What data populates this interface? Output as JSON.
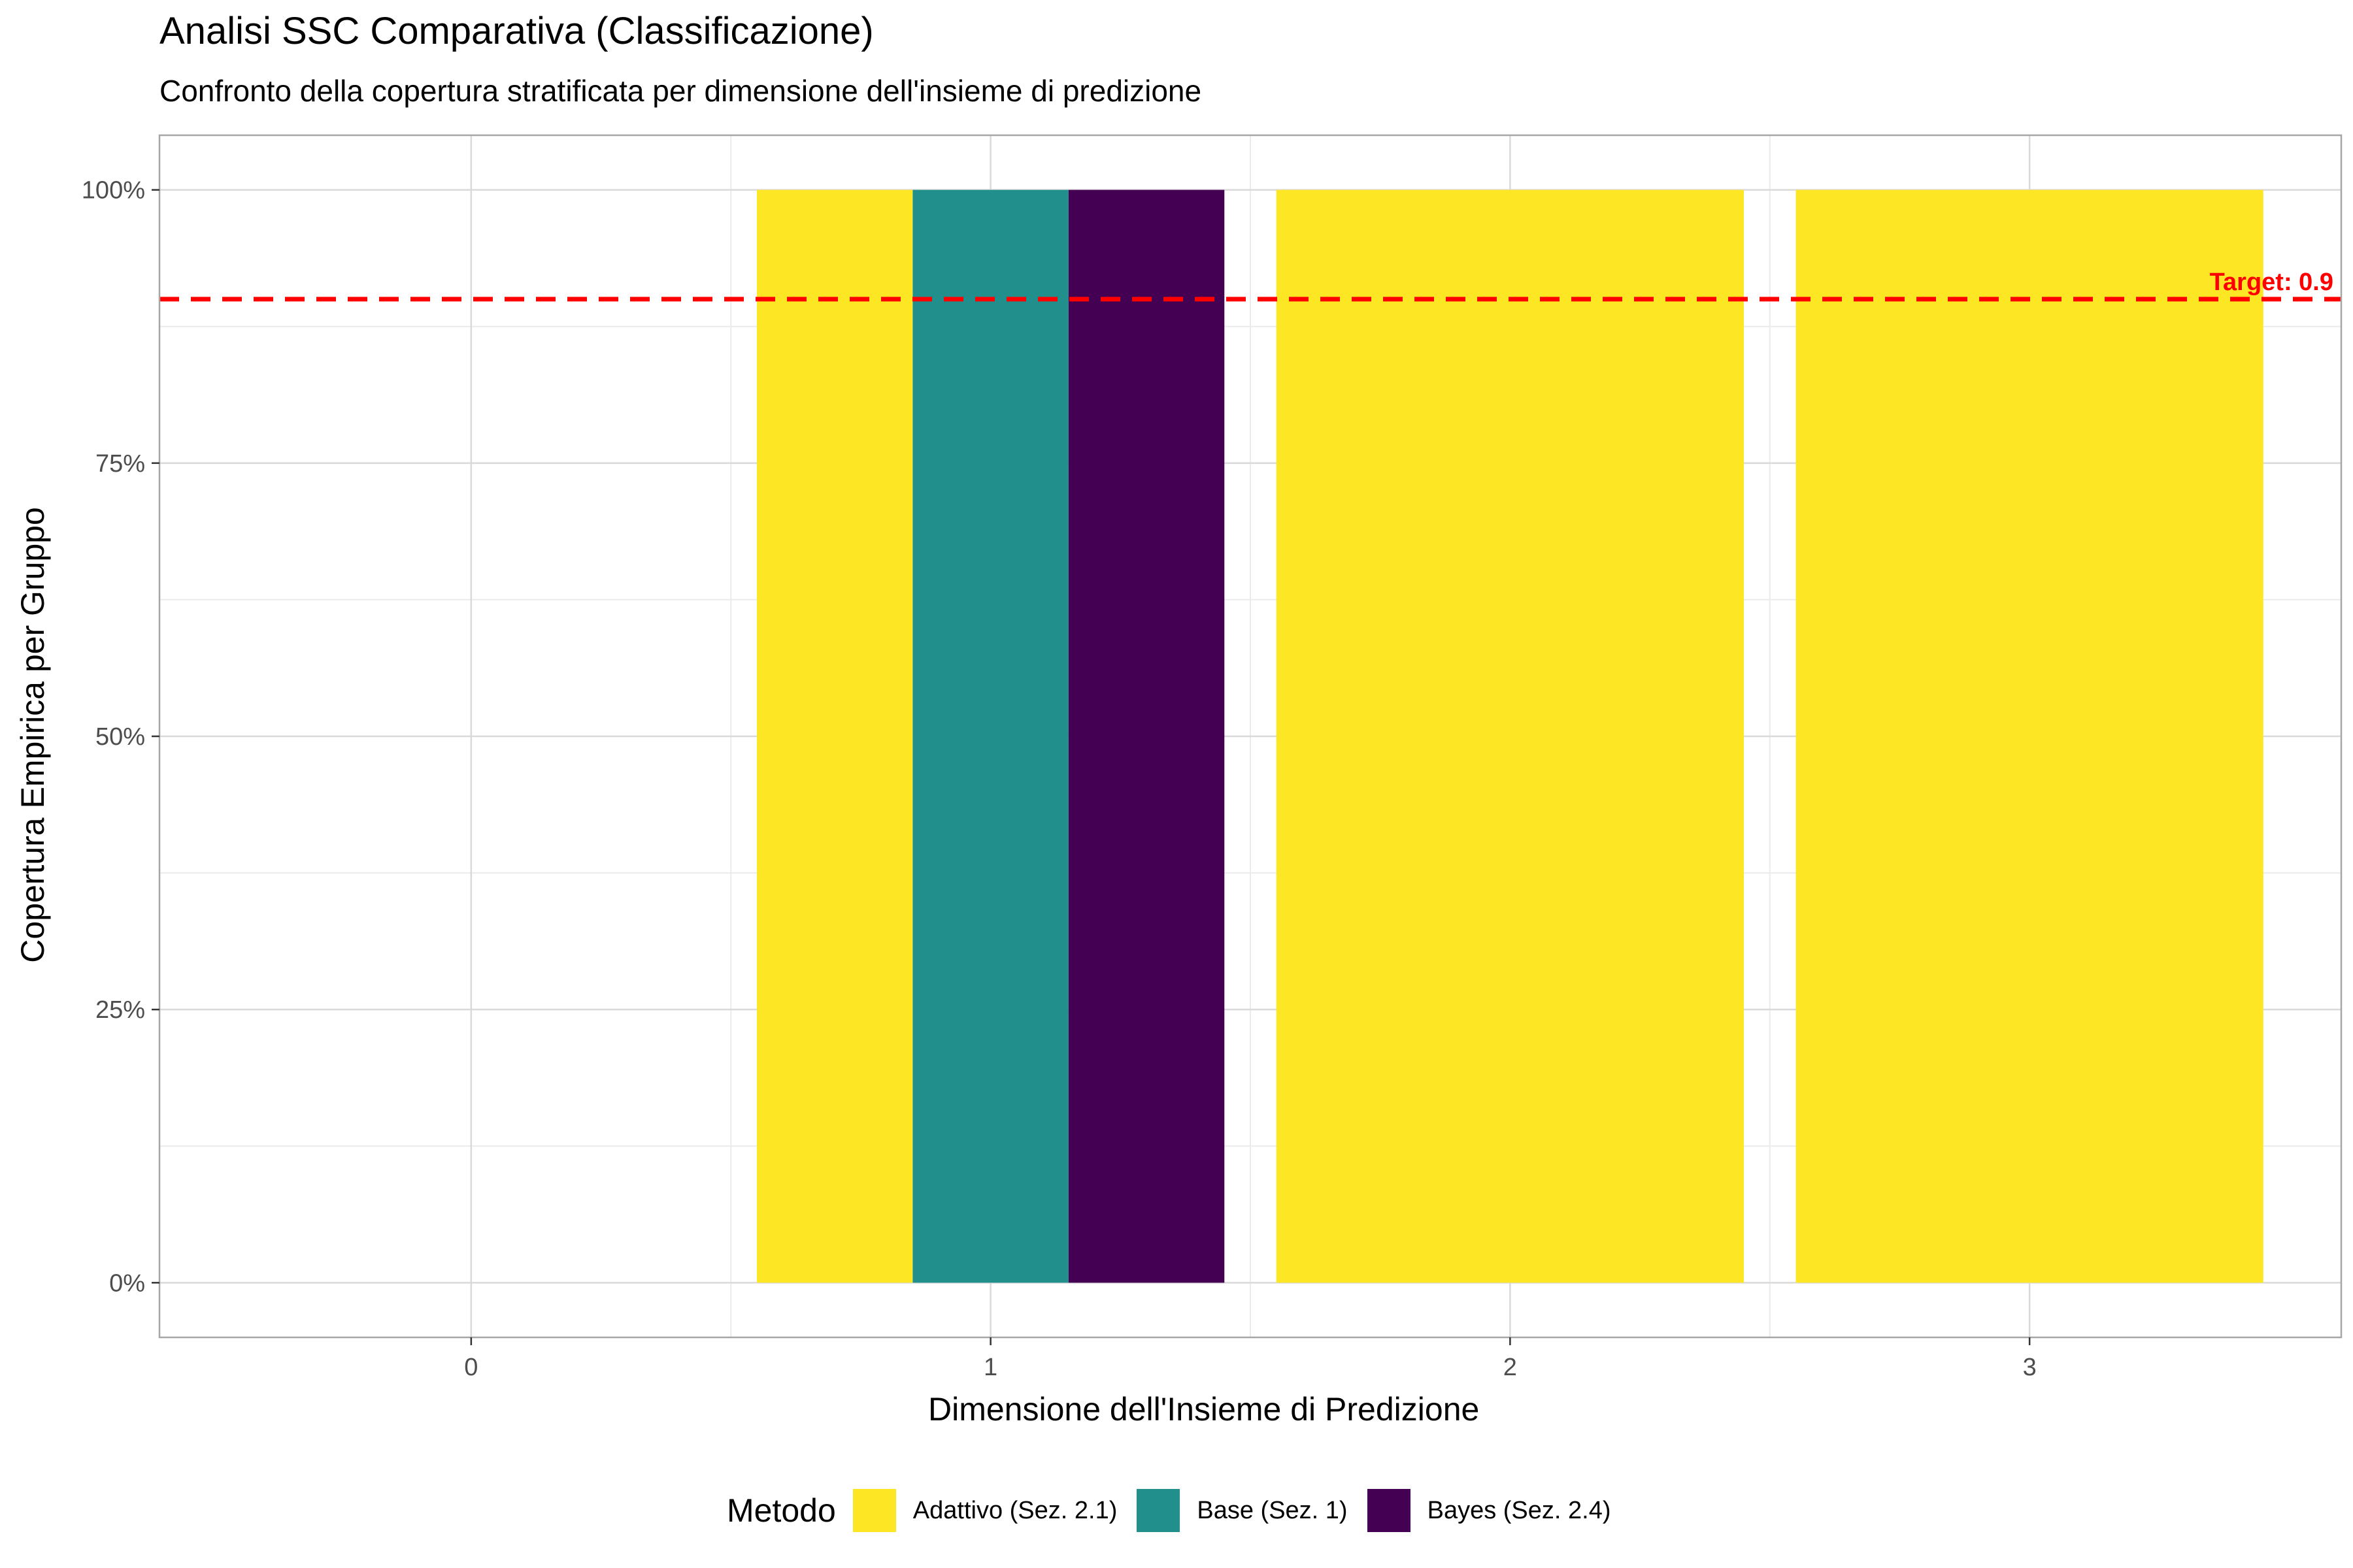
{
  "chart_data": {
    "type": "bar",
    "title": "Analisi SSC Comparativa (Classificazione)",
    "subtitle": "Confronto della copertura stratificata per dimensione dell'insieme di predizione",
    "xlabel": "Dimensione dell'Insieme di Predizione",
    "ylabel": "Copertura Empirica per Gruppo",
    "x_ticks": [
      "0",
      "1",
      "2",
      "3"
    ],
    "y_ticks": [
      "0%",
      "25%",
      "50%",
      "75%",
      "100%"
    ],
    "xlim": [
      -0.6,
      3.6
    ],
    "ylim": [
      -0.05,
      1.05
    ],
    "legend_title": "Metodo",
    "legend_position": "bottom",
    "grid": true,
    "series": [
      {
        "name": "Adattivo (Sez. 2.1)",
        "color": "#FDE725",
        "points": [
          {
            "x": 1,
            "y": 1.0
          },
          {
            "x": 2,
            "y": 1.0
          },
          {
            "x": 3,
            "y": 1.0
          }
        ]
      },
      {
        "name": "Base (Sez. 1)",
        "color": "#21908C",
        "points": [
          {
            "x": 1,
            "y": 1.0
          }
        ]
      },
      {
        "name": "Bayes (Sez. 2.4)",
        "color": "#440154",
        "points": [
          {
            "x": 1,
            "y": 1.0
          }
        ]
      }
    ],
    "reference_line": {
      "y": 0.9,
      "label": "Target: 0.9",
      "color": "#FF0000",
      "style": "dashed"
    }
  }
}
